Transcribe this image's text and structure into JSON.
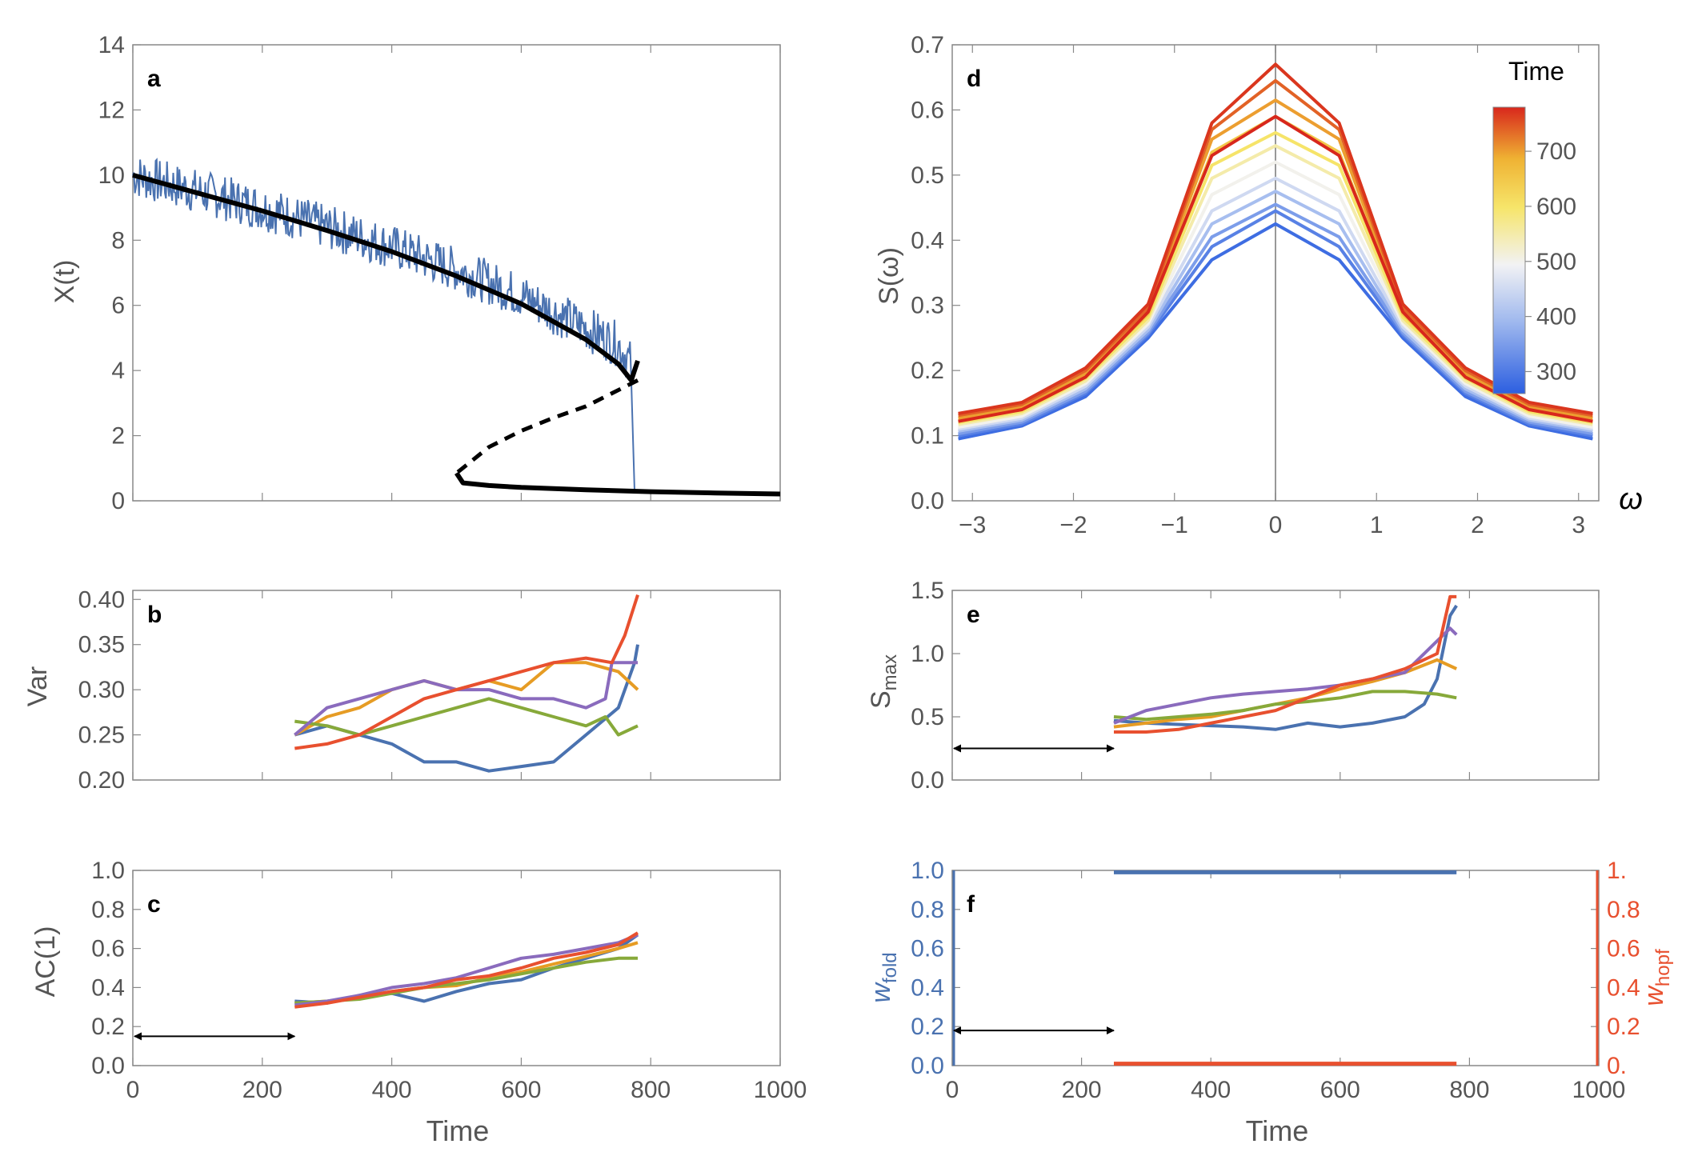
{
  "figure": {
    "colors": {
      "blue": "#4a72b0",
      "orange": "#e69c24",
      "green": "#87a93a",
      "purple": "#8a6bbd",
      "red": "#e8502f",
      "black": "#000000",
      "frame": "#888888",
      "text": "#555555"
    },
    "panels": {
      "a": {
        "letter": "a",
        "ylabel": "X(t)",
        "xlim": [
          0,
          1000
        ],
        "ylim": [
          0,
          14
        ],
        "yticks": [
          "0",
          "2",
          "4",
          "6",
          "8",
          "10",
          "12",
          "14"
        ]
      },
      "b": {
        "letter": "b",
        "ylabel": "Var",
        "xlim": [
          0,
          1000
        ],
        "ylim": [
          0.2,
          0.41
        ],
        "yticks": [
          "0.20",
          "0.25",
          "0.30",
          "0.35",
          "0.40"
        ]
      },
      "c": {
        "letter": "c",
        "ylabel": "AC(1)",
        "xlabel": "Time",
        "xlim": [
          0,
          1000
        ],
        "ylim": [
          0,
          1
        ],
        "yticks": [
          "0.0",
          "0.2",
          "0.4",
          "0.6",
          "0.8",
          "1.0"
        ],
        "xticks": [
          "0",
          "200",
          "400",
          "600",
          "800",
          "1000"
        ]
      },
      "d": {
        "letter": "d",
        "ylabel": "S(ω)",
        "xlabel": "ω",
        "xlim": [
          -3.2,
          3.2
        ],
        "ylim": [
          0,
          0.7
        ],
        "yticks": [
          "0.0",
          "0.1",
          "0.2",
          "0.3",
          "0.4",
          "0.5",
          "0.6",
          "0.7"
        ],
        "xticks": [
          "−3",
          "−2",
          "−1",
          "0",
          "1",
          "2",
          "3"
        ],
        "colorbar_title": "Time",
        "colorbar_ticks": [
          "300",
          "400",
          "500",
          "600",
          "700"
        ]
      },
      "e": {
        "letter": "e",
        "ylabel_main": "S",
        "ylabel_sub": "max",
        "xlim": [
          0,
          1000
        ],
        "ylim": [
          0,
          1.5
        ],
        "yticks": [
          "0.0",
          "0.5",
          "1.0",
          "1.5"
        ]
      },
      "f": {
        "letter": "f",
        "ylabel_left_main": "w",
        "ylabel_left_sub": "fold",
        "ylabel_right_main": "w",
        "ylabel_right_sub": "hopf",
        "xlabel": "Time",
        "xlim": [
          0,
          1000
        ],
        "ylim": [
          0,
          1
        ],
        "yticks_left": [
          "0.0",
          "0.2",
          "0.4",
          "0.6",
          "0.8",
          "1.0"
        ],
        "yticks_right": [
          "0.",
          "0.2",
          "0.4",
          "0.6",
          "0.8",
          "1."
        ],
        "xticks": [
          "0",
          "200",
          "400",
          "600",
          "800",
          "1000"
        ]
      }
    }
  },
  "chart_data": [
    {
      "panel": "a",
      "type": "line",
      "ylabel": "X(t)",
      "xlim": [
        0,
        1000
      ],
      "ylim": [
        0,
        14
      ],
      "series": [
        {
          "style": "noisy trajectory",
          "color": "#4a72b0",
          "x": [
            0,
            100,
            200,
            300,
            400,
            500,
            600,
            700,
            750,
            770,
            775,
            780,
            1000
          ],
          "y": [
            10.0,
            9.5,
            9.0,
            8.4,
            7.8,
            7.1,
            6.3,
            5.3,
            4.8,
            4.2,
            0.3,
            0.3,
            0.3
          ]
        },
        {
          "style": "stable upper branch",
          "color": "#000000",
          "x": [
            0,
            100,
            200,
            300,
            400,
            500,
            600,
            700,
            750,
            770,
            780
          ],
          "y": [
            10.0,
            9.45,
            8.9,
            8.3,
            7.65,
            6.9,
            6.05,
            4.95,
            4.2,
            3.7,
            4.3
          ]
        },
        {
          "style": "unstable branch (dashed)",
          "color": "#000000",
          "x": [
            780,
            700,
            650,
            600,
            550,
            500
          ],
          "y": [
            3.7,
            2.9,
            2.55,
            2.15,
            1.65,
            0.85
          ]
        },
        {
          "style": "stable lower branch",
          "color": "#000000",
          "x": [
            500,
            510,
            550,
            600,
            700,
            800,
            900,
            1000
          ],
          "y": [
            0.85,
            0.55,
            0.47,
            0.41,
            0.34,
            0.28,
            0.24,
            0.21
          ]
        }
      ]
    },
    {
      "panel": "b",
      "type": "line",
      "ylabel": "Var",
      "xlim": [
        0,
        1000
      ],
      "ylim": [
        0.2,
        0.41
      ],
      "series": [
        {
          "color": "#4a72b0",
          "x": [
            250,
            300,
            350,
            400,
            450,
            500,
            550,
            600,
            650,
            700,
            750,
            775,
            780
          ],
          "y": [
            0.25,
            0.26,
            0.25,
            0.24,
            0.22,
            0.22,
            0.21,
            0.215,
            0.22,
            0.25,
            0.28,
            0.33,
            0.35
          ]
        },
        {
          "color": "#e69c24",
          "x": [
            250,
            300,
            350,
            400,
            450,
            500,
            550,
            600,
            650,
            700,
            750,
            780
          ],
          "y": [
            0.25,
            0.27,
            0.28,
            0.3,
            0.31,
            0.3,
            0.31,
            0.3,
            0.33,
            0.33,
            0.32,
            0.3
          ]
        },
        {
          "color": "#87a93a",
          "x": [
            250,
            300,
            350,
            400,
            450,
            500,
            550,
            600,
            650,
            700,
            730,
            750,
            780
          ],
          "y": [
            0.265,
            0.26,
            0.25,
            0.26,
            0.27,
            0.28,
            0.29,
            0.28,
            0.27,
            0.26,
            0.27,
            0.25,
            0.26
          ]
        },
        {
          "color": "#8a6bbd",
          "x": [
            250,
            300,
            350,
            400,
            450,
            500,
            550,
            600,
            650,
            700,
            730,
            740,
            780
          ],
          "y": [
            0.25,
            0.28,
            0.29,
            0.3,
            0.31,
            0.3,
            0.3,
            0.29,
            0.29,
            0.28,
            0.29,
            0.33,
            0.33
          ]
        },
        {
          "color": "#e8502f",
          "x": [
            250,
            300,
            350,
            400,
            450,
            500,
            550,
            600,
            650,
            700,
            740,
            760,
            780
          ],
          "y": [
            0.235,
            0.24,
            0.25,
            0.27,
            0.29,
            0.3,
            0.31,
            0.32,
            0.33,
            0.335,
            0.33,
            0.36,
            0.405
          ]
        }
      ]
    },
    {
      "panel": "c",
      "type": "line",
      "ylabel": "AC(1)",
      "xlabel": "Time",
      "xlim": [
        0,
        1000
      ],
      "ylim": [
        0,
        1
      ],
      "annotation": {
        "type": "double-arrow",
        "x": [
          0,
          250
        ],
        "y": 0.15
      },
      "series": [
        {
          "color": "#4a72b0",
          "x": [
            250,
            300,
            350,
            400,
            450,
            500,
            550,
            600,
            650,
            700,
            750,
            780
          ],
          "y": [
            0.33,
            0.32,
            0.36,
            0.37,
            0.33,
            0.38,
            0.42,
            0.44,
            0.5,
            0.55,
            0.6,
            0.67
          ]
        },
        {
          "color": "#e69c24",
          "x": [
            250,
            300,
            350,
            400,
            450,
            500,
            550,
            600,
            650,
            700,
            750,
            780
          ],
          "y": [
            0.32,
            0.33,
            0.35,
            0.38,
            0.4,
            0.41,
            0.45,
            0.48,
            0.52,
            0.56,
            0.6,
            0.63
          ]
        },
        {
          "color": "#87a93a",
          "x": [
            250,
            300,
            350,
            400,
            450,
            500,
            550,
            600,
            650,
            700,
            750,
            780
          ],
          "y": [
            0.32,
            0.33,
            0.34,
            0.37,
            0.4,
            0.42,
            0.44,
            0.47,
            0.5,
            0.53,
            0.55,
            0.55
          ]
        },
        {
          "color": "#8a6bbd",
          "x": [
            250,
            300,
            350,
            400,
            450,
            500,
            550,
            600,
            650,
            700,
            750,
            780
          ],
          "y": [
            0.31,
            0.33,
            0.36,
            0.4,
            0.42,
            0.45,
            0.5,
            0.55,
            0.57,
            0.6,
            0.63,
            0.67
          ]
        },
        {
          "color": "#e8502f",
          "x": [
            250,
            300,
            350,
            400,
            450,
            500,
            550,
            600,
            650,
            700,
            750,
            780
          ],
          "y": [
            0.3,
            0.32,
            0.35,
            0.38,
            0.4,
            0.44,
            0.46,
            0.5,
            0.55,
            0.58,
            0.62,
            0.68
          ]
        }
      ]
    },
    {
      "panel": "d",
      "type": "line",
      "ylabel": "S(ω)",
      "xlabel": "ω",
      "xlim": [
        -3.2,
        3.2
      ],
      "ylim": [
        0,
        0.7
      ],
      "colorbar": {
        "title": "Time",
        "range": [
          260,
          780
        ],
        "ticks": [
          300,
          400,
          500,
          600,
          700
        ]
      },
      "omega": [
        -3.14,
        -2.51,
        -1.88,
        -1.26,
        -0.63,
        0,
        0.63,
        1.26,
        1.88,
        2.51,
        3.14
      ],
      "series": [
        {
          "time": 280,
          "values": [
            0.095,
            0.115,
            0.16,
            0.25,
            0.37,
            0.425,
            0.37,
            0.25,
            0.16,
            0.115,
            0.095
          ]
        },
        {
          "time": 310,
          "values": [
            0.1,
            0.118,
            0.165,
            0.255,
            0.39,
            0.445,
            0.39,
            0.255,
            0.165,
            0.118,
            0.1
          ]
        },
        {
          "time": 350,
          "values": [
            0.103,
            0.121,
            0.168,
            0.258,
            0.405,
            0.455,
            0.405,
            0.258,
            0.168,
            0.121,
            0.103
          ]
        },
        {
          "time": 400,
          "values": [
            0.107,
            0.124,
            0.172,
            0.262,
            0.425,
            0.475,
            0.425,
            0.262,
            0.172,
            0.124,
            0.107
          ]
        },
        {
          "time": 450,
          "values": [
            0.11,
            0.127,
            0.176,
            0.267,
            0.445,
            0.495,
            0.445,
            0.267,
            0.176,
            0.127,
            0.11
          ]
        },
        {
          "time": 500,
          "values": [
            0.113,
            0.13,
            0.18,
            0.272,
            0.47,
            0.52,
            0.47,
            0.272,
            0.18,
            0.13,
            0.113
          ]
        },
        {
          "time": 550,
          "values": [
            0.117,
            0.134,
            0.184,
            0.277,
            0.495,
            0.545,
            0.495,
            0.277,
            0.184,
            0.134,
            0.117
          ]
        },
        {
          "time": 600,
          "values": [
            0.12,
            0.137,
            0.188,
            0.282,
            0.515,
            0.565,
            0.515,
            0.282,
            0.188,
            0.137,
            0.12
          ]
        },
        {
          "time": 650,
          "values": [
            0.123,
            0.14,
            0.192,
            0.287,
            0.535,
            0.59,
            0.535,
            0.287,
            0.192,
            0.14,
            0.123
          ]
        },
        {
          "time": 700,
          "values": [
            0.127,
            0.144,
            0.196,
            0.292,
            0.555,
            0.615,
            0.555,
            0.292,
            0.196,
            0.144,
            0.127
          ]
        },
        {
          "time": 740,
          "values": [
            0.131,
            0.148,
            0.2,
            0.297,
            0.57,
            0.645,
            0.57,
            0.297,
            0.2,
            0.148,
            0.131
          ]
        },
        {
          "time": 770,
          "values": [
            0.134,
            0.151,
            0.204,
            0.302,
            0.58,
            0.67,
            0.58,
            0.302,
            0.204,
            0.151,
            0.134
          ]
        },
        {
          "time": 780,
          "values": [
            0.122,
            0.14,
            0.19,
            0.29,
            0.53,
            0.59,
            0.53,
            0.29,
            0.19,
            0.14,
            0.122
          ]
        }
      ]
    },
    {
      "panel": "e",
      "type": "line",
      "ylabel": "Smax",
      "xlim": [
        0,
        1000
      ],
      "ylim": [
        0,
        1.5
      ],
      "annotation": {
        "type": "double-arrow",
        "x": [
          0,
          250
        ],
        "y": 0.25
      },
      "series": [
        {
          "color": "#4a72b0",
          "x": [
            250,
            300,
            350,
            400,
            450,
            500,
            550,
            600,
            650,
            700,
            730,
            750,
            770,
            780
          ],
          "y": [
            0.47,
            0.45,
            0.44,
            0.43,
            0.42,
            0.4,
            0.45,
            0.42,
            0.45,
            0.5,
            0.6,
            0.8,
            1.3,
            1.38
          ]
        },
        {
          "color": "#e69c24",
          "x": [
            250,
            300,
            350,
            400,
            450,
            500,
            550,
            600,
            650,
            700,
            750,
            780
          ],
          "y": [
            0.42,
            0.45,
            0.48,
            0.5,
            0.55,
            0.6,
            0.65,
            0.72,
            0.78,
            0.85,
            0.95,
            0.88
          ]
        },
        {
          "color": "#87a93a",
          "x": [
            250,
            300,
            350,
            400,
            450,
            500,
            550,
            600,
            650,
            700,
            750,
            780
          ],
          "y": [
            0.5,
            0.48,
            0.5,
            0.52,
            0.55,
            0.6,
            0.62,
            0.65,
            0.7,
            0.7,
            0.68,
            0.65
          ]
        },
        {
          "color": "#8a6bbd",
          "x": [
            250,
            300,
            350,
            400,
            450,
            500,
            550,
            600,
            650,
            700,
            750,
            770,
            780
          ],
          "y": [
            0.45,
            0.55,
            0.6,
            0.65,
            0.68,
            0.7,
            0.72,
            0.75,
            0.8,
            0.85,
            1.1,
            1.2,
            1.15
          ]
        },
        {
          "color": "#e8502f",
          "x": [
            250,
            300,
            350,
            400,
            450,
            500,
            550,
            600,
            650,
            700,
            750,
            770,
            780
          ],
          "y": [
            0.38,
            0.38,
            0.4,
            0.45,
            0.5,
            0.55,
            0.65,
            0.75,
            0.8,
            0.88,
            1.0,
            1.45,
            1.45
          ]
        }
      ]
    },
    {
      "panel": "f",
      "type": "line",
      "ylabel_left": "wfold",
      "ylabel_right": "whopf",
      "xlabel": "Time",
      "xlim": [
        0,
        1000
      ],
      "ylim": [
        0,
        1
      ],
      "annotation": {
        "type": "double-arrow",
        "x": [
          0,
          250
        ],
        "y": 0.18
      },
      "series": [
        {
          "name": "wfold",
          "color": "#4a72b0",
          "x": [
            250,
            780
          ],
          "y": [
            0.99,
            0.99
          ]
        },
        {
          "name": "whopf",
          "color": "#e8502f",
          "x": [
            250,
            780
          ],
          "y": [
            0.01,
            0.01
          ]
        }
      ]
    }
  ]
}
